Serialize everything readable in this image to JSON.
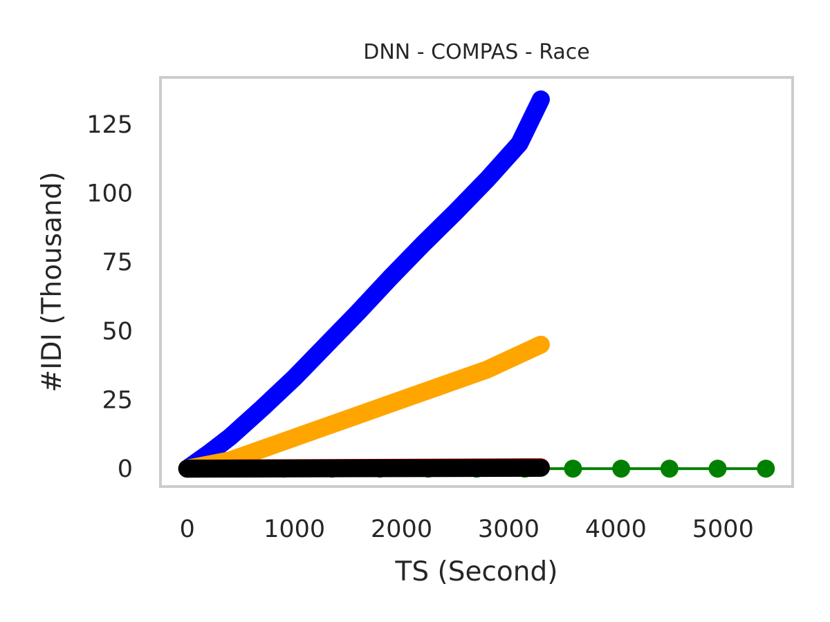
{
  "chart_data": {
    "type": "line",
    "title": "DNN - COMPAS - Race",
    "xlabel": "TS (Second)",
    "ylabel": "#IDI (Thousand)",
    "xlim": [
      -250,
      5650
    ],
    "ylim": [
      -6.5,
      142
    ],
    "xticks": [
      0,
      1000,
      2000,
      3000,
      4000,
      5000
    ],
    "yticks": [
      0,
      25,
      50,
      75,
      100,
      125
    ],
    "grid": false,
    "legend": "none",
    "series": [
      {
        "color": "#0000ff",
        "style": "dense-markers",
        "x": [
          0,
          200,
          400,
          700,
          1000,
          1300,
          1600,
          1900,
          2200,
          2500,
          2800,
          3100,
          3300
        ],
        "y": [
          0,
          5.5,
          11.5,
          22,
          33,
          45,
          57,
          69.5,
          81.5,
          93,
          105,
          118,
          134
        ]
      },
      {
        "color": "#ffa500",
        "style": "dense-markers",
        "x": [
          0,
          400,
          800,
          1200,
          1600,
          2000,
          2400,
          2800,
          3300
        ],
        "y": [
          0,
          3,
          8.5,
          14,
          19.5,
          25,
          30.5,
          36,
          45
        ]
      },
      {
        "color": "#ff0000",
        "style": "dense-markers",
        "x": [
          0,
          3300
        ],
        "y": [
          0,
          0.5
        ]
      },
      {
        "color": "#008000",
        "style": "sparse-markers",
        "x": [
          0,
          450,
          900,
          1350,
          1800,
          2250,
          2700,
          3150,
          3600,
          4050,
          4500,
          4950,
          5400
        ],
        "y": [
          0,
          0,
          0,
          0,
          0,
          0,
          0,
          0,
          0,
          0,
          0,
          0,
          0
        ]
      },
      {
        "color": "#000000",
        "style": "dense-markers",
        "x": [
          0,
          3300
        ],
        "y": [
          0,
          0.3
        ]
      }
    ]
  }
}
